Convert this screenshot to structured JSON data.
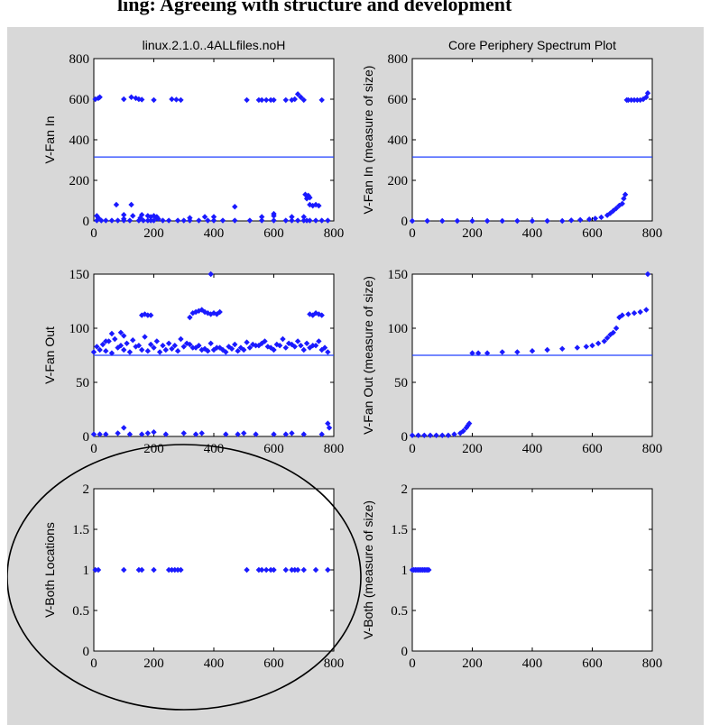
{
  "banner": {
    "text": "ling: Agreeing with structure and development"
  },
  "colors": {
    "marker": "#1a1aff",
    "line": "#2040ff",
    "axes_bg": "#ffffff",
    "figure_bg": "#d8d8d8",
    "annotation": "#000000"
  },
  "annotation": {
    "shape": "ellipse",
    "encloses": "bottom-left-plot"
  },
  "chart_data": [
    {
      "type": "scatter",
      "title": "linux.2.1.0..4ALLfiles.noH",
      "xlabel": "",
      "ylabel": "V-Fan In",
      "xlim": [
        0,
        800
      ],
      "ylim": [
        0,
        800
      ],
      "xticks": [
        "0",
        "200",
        "400",
        "600",
        "800"
      ],
      "yticks": [
        "0",
        "200",
        "400",
        "600",
        "800"
      ],
      "threshold": 315,
      "series": [
        {
          "x": [
            5,
            15,
            20,
            100,
            125,
            140,
            150,
            160,
            200,
            260,
            275,
            290,
            510,
            550,
            560,
            575,
            590,
            600,
            640,
            660,
            670,
            680,
            690,
            700,
            760,
            10,
            25,
            40,
            60,
            80,
            100,
            120,
            150,
            165,
            180,
            190,
            200,
            230,
            250,
            280,
            300,
            320,
            350,
            380,
            400,
            430,
            470,
            520,
            560,
            600,
            640,
            660,
            680,
            700,
            710,
            720,
            740,
            760,
            780,
            15,
            75,
            100,
            125,
            155,
            180,
            190,
            210,
            320,
            370,
            470,
            560,
            600,
            660,
            720,
            730,
            740,
            750,
            10,
            100,
            130,
            160,
            200,
            210,
            215,
            400,
            600,
            700,
            705,
            710,
            715,
            720
          ],
          "y": [
            600,
            605,
            610,
            600,
            610,
            605,
            600,
            598,
            596,
            600,
            598,
            596,
            596,
            596,
            596,
            596,
            596,
            596,
            596,
            596,
            600,
            625,
            610,
            596,
            596,
            2,
            2,
            2,
            2,
            2,
            2,
            2,
            2,
            2,
            2,
            2,
            2,
            2,
            2,
            2,
            2,
            2,
            2,
            2,
            2,
            2,
            2,
            2,
            2,
            2,
            2,
            2,
            2,
            2,
            2,
            2,
            2,
            2,
            2,
            15,
            80,
            10,
            80,
            15,
            25,
            20,
            20,
            15,
            20,
            70,
            20,
            35,
            20,
            80,
            75,
            80,
            75,
            25,
            30,
            25,
            30,
            25,
            15,
            10,
            20,
            25,
            20,
            130,
            110,
            125,
            115
          ]
        }
      ]
    },
    {
      "type": "scatter",
      "title": "Core Periphery Spectrum Plot",
      "xlabel": "",
      "ylabel": "V-Fan In (measure of size)",
      "xlim": [
        0,
        800
      ],
      "ylim": [
        0,
        800
      ],
      "xticks": [
        "0",
        "200",
        "400",
        "600",
        "800"
      ],
      "yticks": [
        "0",
        "200",
        "400",
        "600",
        "800"
      ],
      "threshold": 315,
      "series": [
        {
          "x": [
            0,
            50,
            100,
            150,
            200,
            250,
            300,
            350,
            400,
            450,
            500,
            530,
            560,
            590,
            610,
            630,
            650,
            660,
            670,
            680,
            690,
            700,
            705,
            710,
            715,
            720,
            730,
            740,
            750,
            760,
            770,
            780,
            785
          ],
          "y": [
            0,
            0,
            0,
            0,
            0,
            0,
            0,
            0,
            0,
            0,
            0,
            3,
            5,
            8,
            12,
            18,
            28,
            38,
            50,
            62,
            76,
            85,
            110,
            130,
            596,
            596,
            596,
            596,
            596,
            596,
            600,
            610,
            630
          ]
        }
      ]
    },
    {
      "type": "scatter",
      "title": "",
      "xlabel": "",
      "ylabel": "V-Fan Out",
      "xlim": [
        0,
        800
      ],
      "ylim": [
        0,
        150
      ],
      "xticks": [
        "0",
        "200",
        "400",
        "600",
        "800"
      ],
      "yticks": [
        "0",
        "50",
        "100",
        "150"
      ],
      "threshold": 75,
      "series": [
        {
          "x": [
            0,
            20,
            40,
            60,
            80,
            100,
            120,
            140,
            160,
            180,
            200,
            220,
            240,
            260,
            280,
            300,
            320,
            340,
            360,
            380,
            400,
            420,
            440,
            460,
            480,
            500,
            520,
            540,
            560,
            580,
            600,
            620,
            640,
            660,
            680,
            700,
            720,
            740,
            760,
            780,
            10,
            30,
            50,
            70,
            90,
            110,
            130,
            150,
            170,
            190,
            210,
            230,
            250,
            270,
            290,
            310,
            330,
            350,
            370,
            390,
            410,
            430,
            450,
            470,
            490,
            510,
            530,
            550,
            570,
            590,
            610,
            630,
            650,
            670,
            690,
            710,
            730,
            750,
            770,
            40,
            60,
            90,
            100,
            160,
            170,
            180,
            190,
            330,
            340,
            350,
            360,
            370,
            380,
            390,
            400,
            410,
            420,
            720,
            730,
            740,
            750,
            760,
            320,
            390,
            0,
            20,
            40,
            80,
            100,
            120,
            160,
            180,
            200,
            240,
            300,
            340,
            360,
            440,
            480,
            500,
            540,
            600,
            640,
            660,
            700,
            760,
            780,
            785
          ],
          "y": [
            78,
            80,
            79,
            77,
            82,
            80,
            78,
            83,
            80,
            79,
            82,
            78,
            80,
            81,
            79,
            83,
            85,
            82,
            80,
            79,
            80,
            82,
            78,
            81,
            79,
            80,
            82,
            84,
            86,
            83,
            80,
            84,
            82,
            85,
            88,
            80,
            82,
            84,
            80,
            78,
            83,
            85,
            88,
            90,
            84,
            86,
            89,
            84,
            92,
            85,
            88,
            84,
            86,
            84,
            90,
            86,
            82,
            84,
            81,
            86,
            82,
            80,
            83,
            85,
            82,
            87,
            85,
            84,
            88,
            82,
            85,
            90,
            86,
            83,
            84,
            86,
            84,
            88,
            82,
            88,
            95,
            96,
            93,
            112,
            113,
            112,
            112,
            114,
            115,
            116,
            117,
            115,
            114,
            113,
            114,
            113,
            115,
            113,
            112,
            114,
            113,
            112,
            110,
            150,
            2,
            2,
            2,
            3,
            8,
            2,
            2,
            3,
            4,
            2,
            3,
            2,
            3,
            2,
            2,
            3,
            2,
            2,
            2,
            3,
            2,
            2,
            12,
            8
          ]
        }
      ]
    },
    {
      "type": "scatter",
      "title": "",
      "xlabel": "",
      "ylabel": "V-Fan Out (measure of size)",
      "xlim": [
        0,
        800
      ],
      "ylim": [
        0,
        150
      ],
      "xticks": [
        "0",
        "200",
        "400",
        "600",
        "800"
      ],
      "yticks": [
        "0",
        "50",
        "100",
        "150"
      ],
      "threshold": 75,
      "series": [
        {
          "x": [
            0,
            20,
            40,
            60,
            80,
            100,
            120,
            140,
            160,
            170,
            180,
            185,
            190,
            200,
            220,
            250,
            300,
            350,
            400,
            450,
            500,
            550,
            580,
            600,
            620,
            640,
            650,
            660,
            670,
            680,
            690,
            700,
            720,
            740,
            760,
            780,
            785
          ],
          "y": [
            1,
            1,
            1,
            1,
            1,
            1,
            1,
            2,
            3,
            5,
            8,
            10,
            12,
            77,
            77,
            77,
            78,
            78,
            79,
            80,
            81,
            82,
            83,
            84,
            86,
            88,
            91,
            94,
            96,
            100,
            110,
            112,
            113,
            114,
            115,
            117,
            150
          ]
        }
      ]
    },
    {
      "type": "scatter",
      "title": "",
      "xlabel": "",
      "ylabel": "V-Both Locations",
      "xlim": [
        0,
        800
      ],
      "ylim": [
        0,
        2
      ],
      "xticks": [
        "0",
        "200",
        "400",
        "600",
        "800"
      ],
      "yticks": [
        "0",
        "0.5",
        "1",
        "1.5",
        "2"
      ],
      "series": [
        {
          "x": [
            5,
            15,
            100,
            150,
            160,
            200,
            250,
            260,
            270,
            280,
            290,
            510,
            550,
            560,
            575,
            590,
            600,
            640,
            660,
            670,
            680,
            700,
            740,
            780
          ],
          "y": [
            1,
            1,
            1,
            1,
            1,
            1,
            1,
            1,
            1,
            1,
            1,
            1,
            1,
            1,
            1,
            1,
            1,
            1,
            1,
            1,
            1,
            1,
            1,
            1
          ]
        }
      ]
    },
    {
      "type": "scatter",
      "title": "",
      "xlabel": "",
      "ylabel": "V-Both (measure of size)",
      "xlim": [
        0,
        800
      ],
      "ylim": [
        0,
        2
      ],
      "xticks": [
        "0",
        "200",
        "400",
        "600",
        "800"
      ],
      "yticks": [
        "0",
        "0.5",
        "1",
        "1.5",
        "2"
      ],
      "series": [
        {
          "x": [
            0,
            5,
            10,
            15,
            20,
            25,
            30,
            35,
            40,
            45,
            50,
            55
          ],
          "y": [
            1,
            1,
            1,
            1,
            1,
            1,
            1,
            1,
            1,
            1,
            1,
            1
          ]
        }
      ]
    }
  ]
}
